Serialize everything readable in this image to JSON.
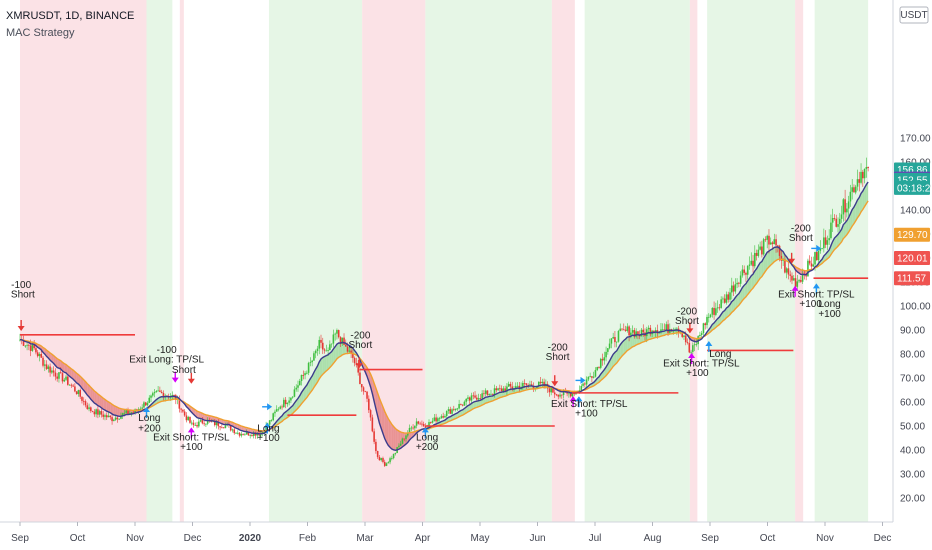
{
  "header": {
    "symbol_line": "XMRUSDT, 1D, BINANCE",
    "strategy_name": "MAC Strategy"
  },
  "currency_button": {
    "label": "USDT"
  },
  "colors": {
    "up": "#26a69a",
    "up_bright": "#3fbf3f",
    "down": "#ef5350",
    "down_bright": "#e53935",
    "bg_green": "#e6f6e6",
    "bg_red": "#fbe2e6",
    "fast_ma": "#3c3c8c",
    "slow_ma": "#f0a030",
    "fill_green": "#9ddb9d",
    "fill_red": "#e58080",
    "level_line": "#ef3b3b",
    "long_arrow": "#2196f3",
    "exit_arrow": "#d500f9",
    "short_arrow": "#e53935"
  },
  "chart_data": {
    "type": "candlestick",
    "title": "XMRUSDT, 1D, BINANCE",
    "indicator": "MAC Strategy",
    "y_ticks": [
      "20.00",
      "30.00",
      "40.00",
      "50.00",
      "60.00",
      "70.00",
      "80.00",
      "90.00",
      "100.00",
      "110.00",
      "120.00",
      "130.00",
      "140.00",
      "150.00",
      "160.00",
      "170.00"
    ],
    "x_ticks": [
      "Sep",
      "Oct",
      "Nov",
      "Dec",
      "2020",
      "Feb",
      "Mar",
      "Apr",
      "May",
      "Jun",
      "Jul",
      "Aug",
      "Sep",
      "Oct",
      "Nov",
      "Dec"
    ],
    "price_tags": [
      {
        "label": "156.86",
        "value": 156.86,
        "color": "#26a69a"
      },
      {
        "label": "153.06",
        "value": 153.06,
        "color": "#6a3fb5"
      },
      {
        "label": "152.55",
        "value": 152.55,
        "color": "#26a69a"
      },
      {
        "label": "03:18:28",
        "value": 149.2,
        "color": "#26a69a"
      },
      {
        "label": "129.70",
        "value": 129.7,
        "color": "#f0a030"
      },
      {
        "label": "120.01",
        "value": 120.01,
        "color": "#ef5350"
      },
      {
        "label": "111.57",
        "value": 111.57,
        "color": "#ef5350"
      }
    ],
    "bands": [
      {
        "x0": 0,
        "x1": 2.2,
        "kind": "red"
      },
      {
        "x0": 2.2,
        "x1": 2.65,
        "kind": "green"
      },
      {
        "x0": 2.78,
        "x1": 2.85,
        "kind": "red"
      },
      {
        "x0": 4.33,
        "x1": 5.95,
        "kind": "green"
      },
      {
        "x0": 5.95,
        "x1": 7.05,
        "kind": "red"
      },
      {
        "x0": 7.05,
        "x1": 9.25,
        "kind": "green"
      },
      {
        "x0": 9.25,
        "x1": 9.65,
        "kind": "red"
      },
      {
        "x0": 9.82,
        "x1": 11.65,
        "kind": "green"
      },
      {
        "x0": 11.65,
        "x1": 11.78,
        "kind": "red"
      },
      {
        "x0": 11.95,
        "x1": 13.48,
        "kind": "green"
      },
      {
        "x0": 13.48,
        "x1": 13.62,
        "kind": "red"
      },
      {
        "x0": 13.82,
        "x1": 14.75,
        "kind": "green"
      }
    ],
    "levels": [
      {
        "x0": 0.0,
        "x1": 2.0,
        "y": 88.0
      },
      {
        "x0": 4.65,
        "x1": 5.85,
        "y": 54.5
      },
      {
        "x0": 5.9,
        "x1": 7.0,
        "y": 73.5
      },
      {
        "x0": 7.05,
        "x1": 9.3,
        "y": 50.0
      },
      {
        "x0": 9.6,
        "x1": 11.45,
        "y": 63.8
      },
      {
        "x0": 11.95,
        "x1": 13.45,
        "y": 81.5
      },
      {
        "x0": 13.8,
        "x1": 14.75,
        "y": 111.57
      }
    ],
    "annotations": [
      {
        "x": 0.02,
        "y": 107.5,
        "text": "-100",
        "anchor": "middle"
      },
      {
        "x": 0.05,
        "y": 103.5,
        "text": "Short",
        "anchor": "middle"
      },
      {
        "x": 2.55,
        "y": 80.5,
        "text": "-100",
        "anchor": "middle"
      },
      {
        "x": 2.55,
        "y": 76.5,
        "text": "Exit Long: TP/SL",
        "anchor": "middle"
      },
      {
        "x": 2.85,
        "y": 72.0,
        "text": "Short",
        "anchor": "middle"
      },
      {
        "x": 2.25,
        "y": 52.0,
        "text": "Long",
        "anchor": "middle"
      },
      {
        "x": 2.25,
        "y": 47.8,
        "text": "+200",
        "anchor": "middle"
      },
      {
        "x": 2.98,
        "y": 44.0,
        "text": "Exit Short: TP/SL",
        "anchor": "middle"
      },
      {
        "x": 2.98,
        "y": 40.0,
        "text": "+100",
        "anchor": "middle"
      },
      {
        "x": 4.32,
        "y": 47.8,
        "text": "Long",
        "anchor": "middle"
      },
      {
        "x": 4.32,
        "y": 43.8,
        "text": "+100",
        "anchor": "middle"
      },
      {
        "x": 5.92,
        "y": 86.5,
        "text": "-200",
        "anchor": "middle"
      },
      {
        "x": 5.92,
        "y": 82.5,
        "text": "Short",
        "anchor": "middle"
      },
      {
        "x": 7.08,
        "y": 44.0,
        "text": "Long",
        "anchor": "middle"
      },
      {
        "x": 7.08,
        "y": 40.0,
        "text": "+200",
        "anchor": "middle"
      },
      {
        "x": 9.35,
        "y": 81.5,
        "text": "-200",
        "anchor": "middle"
      },
      {
        "x": 9.35,
        "y": 77.5,
        "text": "Short",
        "anchor": "middle"
      },
      {
        "x": 9.9,
        "y": 58.0,
        "text": "Exit Short: TP/SL",
        "anchor": "middle"
      },
      {
        "x": 9.85,
        "y": 54.0,
        "text": "+100",
        "anchor": "middle"
      },
      {
        "x": 11.6,
        "y": 96.5,
        "text": "-200",
        "anchor": "middle"
      },
      {
        "x": 11.6,
        "y": 92.5,
        "text": "Short",
        "anchor": "middle"
      },
      {
        "x": 12.18,
        "y": 78.8,
        "text": "Long",
        "anchor": "middle"
      },
      {
        "x": 11.85,
        "y": 74.8,
        "text": "Exit Short: TP/SL",
        "anchor": "middle"
      },
      {
        "x": 11.78,
        "y": 70.8,
        "text": "+100",
        "anchor": "middle"
      },
      {
        "x": 13.58,
        "y": 131.0,
        "text": "-200",
        "anchor": "middle"
      },
      {
        "x": 13.58,
        "y": 127.0,
        "text": "Short",
        "anchor": "middle"
      },
      {
        "x": 13.85,
        "y": 103.5,
        "text": "Exit Short: TP/SL",
        "anchor": "middle"
      },
      {
        "x": 13.75,
        "y": 99.5,
        "text": "+100",
        "anchor": "middle"
      },
      {
        "x": 14.08,
        "y": 99.5,
        "text": "Long",
        "anchor": "middle"
      },
      {
        "x": 14.08,
        "y": 95.5,
        "text": "+100",
        "anchor": "middle"
      }
    ],
    "markers": [
      {
        "x": 0.02,
        "y": 90.0,
        "dir": "down",
        "kind": "short"
      },
      {
        "x": 2.2,
        "y": 57.5,
        "dir": "up",
        "kind": "long"
      },
      {
        "x": 2.7,
        "y": 68.5,
        "dir": "down",
        "kind": "exit"
      },
      {
        "x": 2.98,
        "y": 68.0,
        "dir": "down",
        "kind": "short"
      },
      {
        "x": 2.98,
        "y": 49.0,
        "dir": "up",
        "kind": "exit"
      },
      {
        "x": 4.3,
        "y": 51.0,
        "dir": "up",
        "kind": "long"
      },
      {
        "x": 4.35,
        "y": 58.0,
        "dir": "right",
        "kind": "long"
      },
      {
        "x": 5.9,
        "y": 74.5,
        "dir": "down",
        "kind": "short"
      },
      {
        "x": 7.05,
        "y": 49.0,
        "dir": "up",
        "kind": "long"
      },
      {
        "x": 9.3,
        "y": 67.0,
        "dir": "down",
        "kind": "short"
      },
      {
        "x": 9.62,
        "y": 62.0,
        "dir": "up",
        "kind": "exit"
      },
      {
        "x": 9.72,
        "y": 62.0,
        "dir": "up",
        "kind": "long"
      },
      {
        "x": 9.8,
        "y": 69.0,
        "dir": "right",
        "kind": "long"
      },
      {
        "x": 11.65,
        "y": 89.0,
        "dir": "down",
        "kind": "short"
      },
      {
        "x": 11.68,
        "y": 80.0,
        "dir": "up",
        "kind": "exit"
      },
      {
        "x": 11.98,
        "y": 85.0,
        "dir": "up",
        "kind": "long"
      },
      {
        "x": 13.42,
        "y": 118.0,
        "dir": "down",
        "kind": "short"
      },
      {
        "x": 13.48,
        "y": 108.0,
        "dir": "up",
        "kind": "exit"
      },
      {
        "x": 13.85,
        "y": 109.0,
        "dir": "up",
        "kind": "long"
      },
      {
        "x": 13.9,
        "y": 124.0,
        "dir": "right",
        "kind": "long"
      }
    ],
    "price_anchors": [
      [
        0.0,
        86
      ],
      [
        0.25,
        82
      ],
      [
        0.45,
        75
      ],
      [
        0.6,
        72
      ],
      [
        0.8,
        69
      ],
      [
        1.0,
        64
      ],
      [
        1.2,
        57
      ],
      [
        1.4,
        55
      ],
      [
        1.6,
        53
      ],
      [
        1.8,
        55
      ],
      [
        2.0,
        56
      ],
      [
        2.2,
        60
      ],
      [
        2.4,
        64
      ],
      [
        2.55,
        63
      ],
      [
        2.7,
        62
      ],
      [
        2.85,
        55
      ],
      [
        3.0,
        50
      ],
      [
        3.2,
        52
      ],
      [
        3.4,
        51
      ],
      [
        3.6,
        50
      ],
      [
        3.8,
        47
      ],
      [
        4.0,
        47
      ],
      [
        4.2,
        47
      ],
      [
        4.35,
        52
      ],
      [
        4.5,
        58
      ],
      [
        4.7,
        62
      ],
      [
        4.9,
        70
      ],
      [
        5.1,
        78
      ],
      [
        5.2,
        84
      ],
      [
        5.35,
        80
      ],
      [
        5.5,
        89
      ],
      [
        5.65,
        83
      ],
      [
        5.8,
        78
      ],
      [
        5.95,
        66
      ],
      [
        6.05,
        60
      ],
      [
        6.2,
        38
      ],
      [
        6.35,
        34
      ],
      [
        6.5,
        38
      ],
      [
        6.7,
        46
      ],
      [
        6.9,
        52
      ],
      [
        7.05,
        50
      ],
      [
        7.3,
        54
      ],
      [
        7.6,
        58
      ],
      [
        7.9,
        62
      ],
      [
        8.2,
        64
      ],
      [
        8.5,
        66
      ],
      [
        8.8,
        67
      ],
      [
        9.1,
        67
      ],
      [
        9.3,
        64
      ],
      [
        9.5,
        63
      ],
      [
        9.7,
        65
      ],
      [
        9.85,
        69
      ],
      [
        10.0,
        73
      ],
      [
        10.2,
        82
      ],
      [
        10.4,
        88
      ],
      [
        10.6,
        90
      ],
      [
        10.8,
        88
      ],
      [
        11.0,
        91
      ],
      [
        11.2,
        90
      ],
      [
        11.4,
        92
      ],
      [
        11.55,
        88
      ],
      [
        11.65,
        80
      ],
      [
        11.75,
        84
      ],
      [
        11.95,
        95
      ],
      [
        12.1,
        99
      ],
      [
        12.3,
        104
      ],
      [
        12.5,
        112
      ],
      [
        12.7,
        118
      ],
      [
        12.9,
        124
      ],
      [
        13.05,
        128
      ],
      [
        13.2,
        122
      ],
      [
        13.35,
        113
      ],
      [
        13.5,
        110
      ],
      [
        13.7,
        116
      ],
      [
        13.9,
        122
      ],
      [
        14.1,
        133
      ],
      [
        14.3,
        140
      ],
      [
        14.5,
        150
      ],
      [
        14.65,
        157
      ],
      [
        14.75,
        156
      ]
    ]
  }
}
